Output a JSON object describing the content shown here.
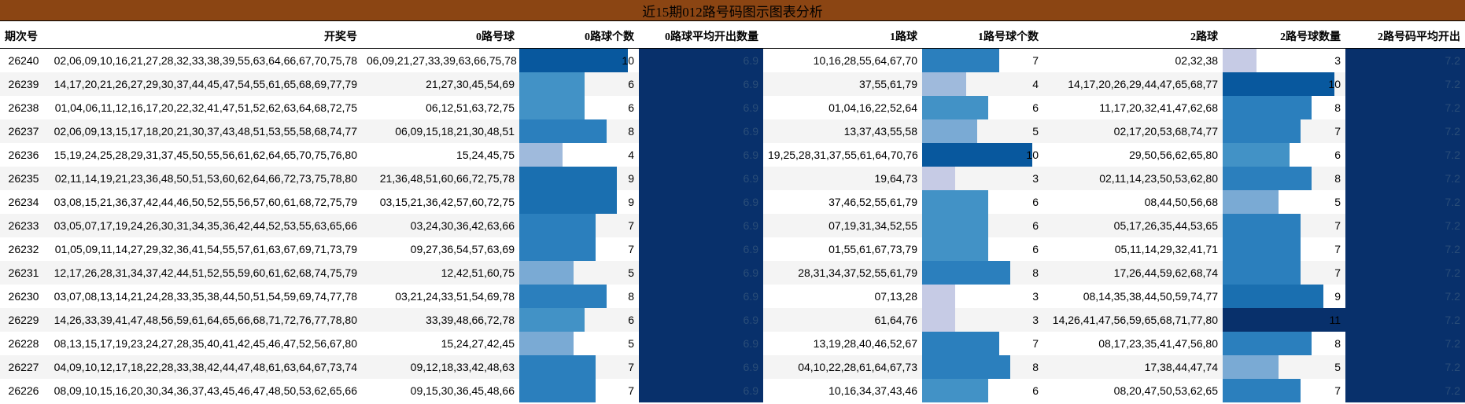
{
  "title": "近15期012路号码图示图表分析",
  "colors": {
    "title_bg": "#8b4513",
    "avg_bg": "#08306b",
    "scale": [
      "#c6cbe5",
      "#9fbadc",
      "#7aaad4",
      "#4292c6",
      "#2b7fbd",
      "#1a6fb0",
      "#08589e",
      "#08306b"
    ]
  },
  "headers": [
    "期次号",
    "开奖号",
    "0路号球",
    "0路球个数",
    "0路球平均开出数量",
    "1路球",
    "1路号球个数",
    "2路球",
    "2路号球数量",
    "2路号码平均开出"
  ],
  "chart_data": {
    "type": "table",
    "title": "近15期012路号码图示图表分析",
    "columns": [
      "期次号",
      "开奖号",
      "0路号球",
      "0路球个数",
      "0路球平均开出数量",
      "1路球",
      "1路号球个数",
      "2路球",
      "2路号球数量",
      "2路号码平均开出"
    ],
    "bar_max": 11,
    "rows": [
      {
        "period": "26240",
        "draw": "02,06,09,10,16,21,27,28,32,33,38,39,55,63,64,66,67,70,75,78",
        "r0": "06,09,21,27,33,39,63,66,75,78",
        "c0": 10,
        "avg0": "6.9",
        "r1": "10,16,28,55,64,67,70",
        "c1": 7,
        "r2": "02,32,38",
        "c2": 3,
        "avg2": "7.2"
      },
      {
        "period": "26239",
        "draw": "14,17,20,21,26,27,29,30,37,44,45,47,54,55,61,65,68,69,77,79",
        "r0": "21,27,30,45,54,69",
        "c0": 6,
        "avg0": "6.9",
        "r1": "37,55,61,79",
        "c1": 4,
        "r2": "14,17,20,26,29,44,47,65,68,77",
        "c2": 10,
        "avg2": "7.2"
      },
      {
        "period": "26238",
        "draw": "01,04,06,11,12,16,17,20,22,32,41,47,51,52,62,63,64,68,72,75",
        "r0": "06,12,51,63,72,75",
        "c0": 6,
        "avg0": "6.9",
        "r1": "01,04,16,22,52,64",
        "c1": 6,
        "r2": "11,17,20,32,41,47,62,68",
        "c2": 8,
        "avg2": "7.2"
      },
      {
        "period": "26237",
        "draw": "02,06,09,13,15,17,18,20,21,30,37,43,48,51,53,55,58,68,74,77",
        "r0": "06,09,15,18,21,30,48,51",
        "c0": 8,
        "avg0": "6.9",
        "r1": "13,37,43,55,58",
        "c1": 5,
        "r2": "02,17,20,53,68,74,77",
        "c2": 7,
        "avg2": "7.2"
      },
      {
        "period": "26236",
        "draw": "15,19,24,25,28,29,31,37,45,50,55,56,61,62,64,65,70,75,76,80",
        "r0": "15,24,45,75",
        "c0": 4,
        "avg0": "6.9",
        "r1": "19,25,28,31,37,55,61,64,70,76",
        "c1": 10,
        "r2": "29,50,56,62,65,80",
        "c2": 6,
        "avg2": "7.2"
      },
      {
        "period": "26235",
        "draw": "02,11,14,19,21,23,36,48,50,51,53,60,62,64,66,72,73,75,78,80",
        "r0": "21,36,48,51,60,66,72,75,78",
        "c0": 9,
        "avg0": "6.9",
        "r1": "19,64,73",
        "c1": 3,
        "r2": "02,11,14,23,50,53,62,80",
        "c2": 8,
        "avg2": "7.2"
      },
      {
        "period": "26234",
        "draw": "03,08,15,21,36,37,42,44,46,50,52,55,56,57,60,61,68,72,75,79",
        "r0": "03,15,21,36,42,57,60,72,75",
        "c0": 9,
        "avg0": "6.9",
        "r1": "37,46,52,55,61,79",
        "c1": 6,
        "r2": "08,44,50,56,68",
        "c2": 5,
        "avg2": "7.2"
      },
      {
        "period": "26233",
        "draw": "03,05,07,17,19,24,26,30,31,34,35,36,42,44,52,53,55,63,65,66",
        "r0": "03,24,30,36,42,63,66",
        "c0": 7,
        "avg0": "6.9",
        "r1": "07,19,31,34,52,55",
        "c1": 6,
        "r2": "05,17,26,35,44,53,65",
        "c2": 7,
        "avg2": "7.2"
      },
      {
        "period": "26232",
        "draw": "01,05,09,11,14,27,29,32,36,41,54,55,57,61,63,67,69,71,73,79",
        "r0": "09,27,36,54,57,63,69",
        "c0": 7,
        "avg0": "6.9",
        "r1": "01,55,61,67,73,79",
        "c1": 6,
        "r2": "05,11,14,29,32,41,71",
        "c2": 7,
        "avg2": "7.2"
      },
      {
        "period": "26231",
        "draw": "12,17,26,28,31,34,37,42,44,51,52,55,59,60,61,62,68,74,75,79",
        "r0": "12,42,51,60,75",
        "c0": 5,
        "avg0": "6.9",
        "r1": "28,31,34,37,52,55,61,79",
        "c1": 8,
        "r2": "17,26,44,59,62,68,74",
        "c2": 7,
        "avg2": "7.2"
      },
      {
        "period": "26230",
        "draw": "03,07,08,13,14,21,24,28,33,35,38,44,50,51,54,59,69,74,77,78",
        "r0": "03,21,24,33,51,54,69,78",
        "c0": 8,
        "avg0": "6.9",
        "r1": "07,13,28",
        "c1": 3,
        "r2": "08,14,35,38,44,50,59,74,77",
        "c2": 9,
        "avg2": "7.2"
      },
      {
        "period": "26229",
        "draw": "14,26,33,39,41,47,48,56,59,61,64,65,66,68,71,72,76,77,78,80",
        "r0": "33,39,48,66,72,78",
        "c0": 6,
        "avg0": "6.9",
        "r1": "61,64,76",
        "c1": 3,
        "r2": "14,26,41,47,56,59,65,68,71,77,80",
        "c2": 11,
        "avg2": "7.2"
      },
      {
        "period": "26228",
        "draw": "08,13,15,17,19,23,24,27,28,35,40,41,42,45,46,47,52,56,67,80",
        "r0": "15,24,27,42,45",
        "c0": 5,
        "avg0": "6.9",
        "r1": "13,19,28,40,46,52,67",
        "c1": 7,
        "r2": "08,17,23,35,41,47,56,80",
        "c2": 8,
        "avg2": "7.2"
      },
      {
        "period": "26227",
        "draw": "04,09,10,12,17,18,22,28,33,38,42,44,47,48,61,63,64,67,73,74",
        "r0": "09,12,18,33,42,48,63",
        "c0": 7,
        "avg0": "6.9",
        "r1": "04,10,22,28,61,64,67,73",
        "c1": 8,
        "r2": "17,38,44,47,74",
        "c2": 5,
        "avg2": "7.2"
      },
      {
        "period": "26226",
        "draw": "08,09,10,15,16,20,30,34,36,37,43,45,46,47,48,50,53,62,65,66",
        "r0": "09,15,30,36,45,48,66",
        "c0": 7,
        "avg0": "6.9",
        "r1": "10,16,34,37,43,46",
        "c1": 6,
        "r2": "08,20,47,50,53,62,65",
        "c2": 7,
        "avg2": "7.2"
      }
    ]
  }
}
